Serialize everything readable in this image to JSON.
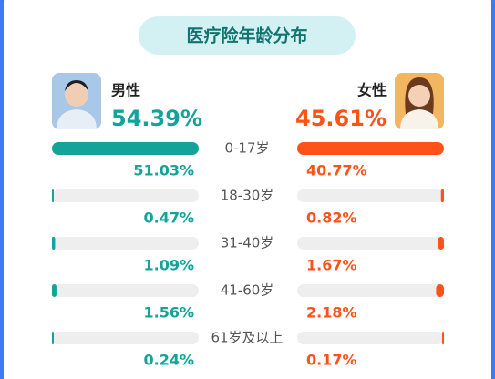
{
  "chart_data": {
    "type": "butterfly",
    "title": "医疗险年龄分布",
    "categories": [
      "0-17岁",
      "18-30岁",
      "31-40岁",
      "41-60岁",
      "61岁及以上"
    ],
    "series": [
      {
        "name": "男性",
        "color": "#13a39b",
        "share": 54.39,
        "share_label": "54.39%",
        "values": [
          51.03,
          0.47,
          1.09,
          1.56,
          0.24
        ],
        "value_labels": [
          "51.03%",
          "0.47%",
          "1.09%",
          "1.56%",
          "0.24%"
        ]
      },
      {
        "name": "女性",
        "color": "#ff5219",
        "share": 45.61,
        "share_label": "45.61%",
        "values": [
          40.77,
          0.82,
          1.67,
          2.18,
          0.17
        ],
        "value_labels": [
          "40.77%",
          "0.82%",
          "1.67%",
          "2.18%",
          "0.17%"
        ]
      }
    ]
  }
}
